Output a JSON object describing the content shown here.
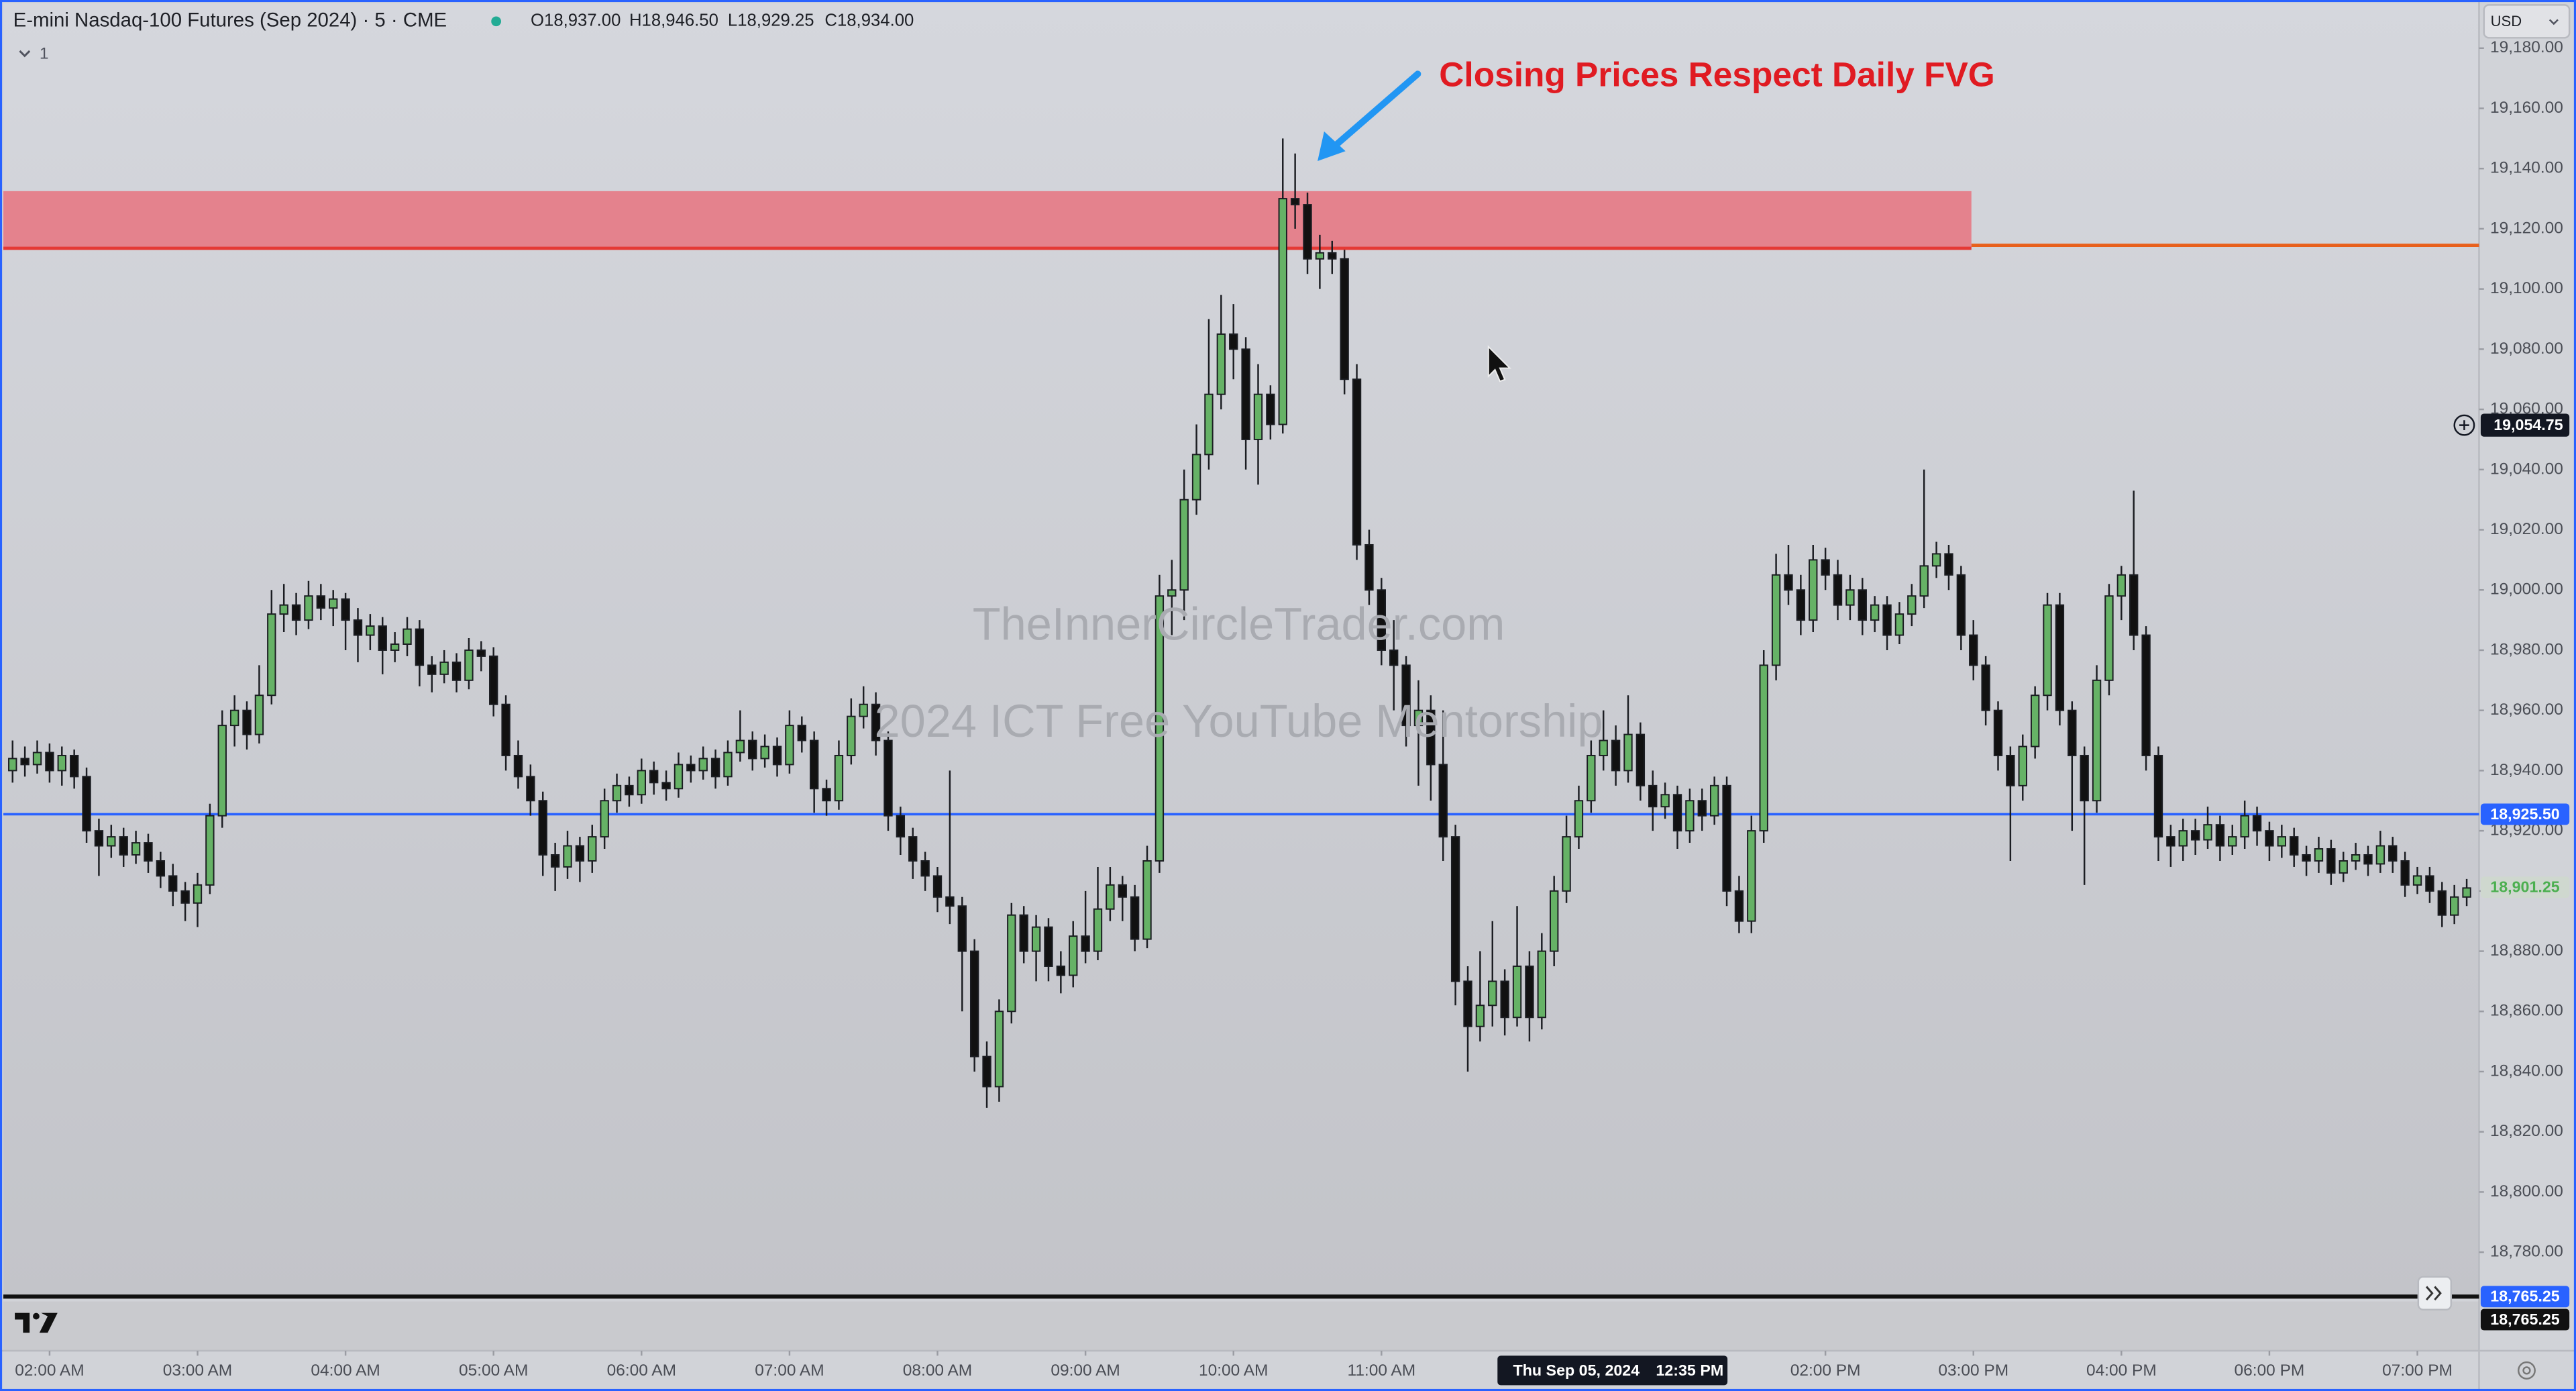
{
  "chart_data": {
    "type": "candlestick",
    "title": "E-mini Nasdaq-100 Futures (Sep 2024) · 5 · CME",
    "ohlc_legend": [
      "O18,937.00",
      "H18,946.50",
      "L18,929.25",
      "C18,934.00"
    ],
    "indicator_count": "1",
    "currency": "USD",
    "annotation": "Closing Prices Respect Daily FVG",
    "watermarks": [
      "TheInnerCircleTrader.com",
      "2024 ICT Free YouTube Mentorship"
    ],
    "up_color": "#66b266",
    "down_color": "#111111",
    "ylim": [
      18759,
      19196
    ],
    "yticks": [
      {
        "value": 19180,
        "label": "19,180.00"
      },
      {
        "value": 19160,
        "label": "19,160.00"
      },
      {
        "value": 19140,
        "label": "19,140.00"
      },
      {
        "value": 19120,
        "label": "19,120.00"
      },
      {
        "value": 19100,
        "label": "19,100.00"
      },
      {
        "value": 19080,
        "label": "19,080.00"
      },
      {
        "value": 19060,
        "label": "19,060.00"
      },
      {
        "value": 19040,
        "label": "19,040.00"
      },
      {
        "value": 19020,
        "label": "19,020.00"
      },
      {
        "value": 19000,
        "label": "19,000.00"
      },
      {
        "value": 18980,
        "label": "18,980.00"
      },
      {
        "value": 18960,
        "label": "18,960.00"
      },
      {
        "value": 18940,
        "label": "18,940.00"
      },
      {
        "value": 18920,
        "label": "18,920.00"
      },
      {
        "value": 18900,
        "label": "18,900.00"
      },
      {
        "value": 18880,
        "label": "18,880.00"
      },
      {
        "value": 18860,
        "label": "18,860.00"
      },
      {
        "value": 18840,
        "label": "18,840.00"
      },
      {
        "value": 18820,
        "label": "18,820.00"
      },
      {
        "value": 18800,
        "label": "18,800.00"
      },
      {
        "value": 18780,
        "label": "18,780.00"
      }
    ],
    "xlim": [
      -0.75,
      200
    ],
    "xticks": [
      {
        "value": 3,
        "label": "02:00 AM"
      },
      {
        "value": 15,
        "label": "03:00 AM"
      },
      {
        "value": 27,
        "label": "04:00 AM"
      },
      {
        "value": 39,
        "label": "05:00 AM"
      },
      {
        "value": 51,
        "label": "06:00 AM"
      },
      {
        "value": 63,
        "label": "07:00 AM"
      },
      {
        "value": 75,
        "label": "08:00 AM"
      },
      {
        "value": 87,
        "label": "09:00 AM"
      },
      {
        "value": 99,
        "label": "10:00 AM"
      },
      {
        "value": 111,
        "label": "11:00 AM"
      },
      {
        "value": 147,
        "label": "02:00 PM"
      },
      {
        "value": 159,
        "label": "03:00 PM"
      },
      {
        "value": 171,
        "label": "04:00 PM"
      },
      {
        "value": 183,
        "label": "06:00 PM"
      },
      {
        "value": 195,
        "label": "07:00 PM"
      }
    ],
    "zone": {
      "from": 19113.5,
      "to": 19132.5,
      "color": "#e8737f",
      "edge_color": "#e53935"
    },
    "fvg_line": {
      "value": 19114.5,
      "color": "#e8601c"
    },
    "levels": [
      {
        "value": 18925.5,
        "label": "18,925.50",
        "color": "#2962ff"
      },
      {
        "value": 18765.25,
        "label": "18,765.25",
        "color": "#111111"
      }
    ],
    "level_extra_label": {
      "value": 18765.25,
      "label": "18,765.25",
      "color": "#2962ff"
    },
    "last_price": {
      "value": 18901.25,
      "label": "18,901.25",
      "color": "#4caf50"
    },
    "crosshair": {
      "x": 130,
      "y": 19054.75,
      "price_label": "19,054.75",
      "date": "Thu Sep 05, 2024",
      "time": "12:35 PM"
    },
    "candles": [
      [
        18940,
        18950,
        18936,
        18944
      ],
      [
        18944,
        18948,
        18938,
        18942
      ],
      [
        18942,
        18950,
        18939,
        18946
      ],
      [
        18946,
        18949,
        18936,
        18940
      ],
      [
        18940,
        18948,
        18935,
        18945
      ],
      [
        18945,
        18947,
        18934,
        18938
      ],
      [
        18938,
        18941,
        18916,
        18920
      ],
      [
        18920,
        18924,
        18905,
        18915
      ],
      [
        18915,
        18922,
        18911,
        18918
      ],
      [
        18918,
        18921,
        18908,
        18912
      ],
      [
        18912,
        18920,
        18909,
        18916
      ],
      [
        18916,
        18919,
        18906,
        18910
      ],
      [
        18910,
        18913,
        18901,
        18905
      ],
      [
        18905,
        18909,
        18895,
        18900
      ],
      [
        18900,
        18903,
        18890,
        18896
      ],
      [
        18896,
        18906,
        18888,
        18902
      ],
      [
        18902,
        18929,
        18899,
        18925
      ],
      [
        18925,
        18960,
        18921,
        18955
      ],
      [
        18955,
        18965,
        18948,
        18960
      ],
      [
        18960,
        18963,
        18947,
        18952
      ],
      [
        18952,
        18975,
        18949,
        18965
      ],
      [
        18965,
        19000,
        18962,
        18992
      ],
      [
        18992,
        19002,
        18986,
        18995
      ],
      [
        18995,
        18999,
        18985,
        18990
      ],
      [
        18990,
        19003,
        18987,
        18998
      ],
      [
        18998,
        19002,
        18990,
        18994
      ],
      [
        18994,
        19000,
        18988,
        18997
      ],
      [
        18997,
        18999,
        18980,
        18990
      ],
      [
        18990,
        18994,
        18976,
        18985
      ],
      [
        18985,
        18992,
        18980,
        18988
      ],
      [
        18988,
        18991,
        18972,
        18980
      ],
      [
        18980,
        18986,
        18976,
        18982
      ],
      [
        18982,
        18991,
        18978,
        18987
      ],
      [
        18987,
        18990,
        18968,
        18975
      ],
      [
        18975,
        18978,
        18966,
        18972
      ],
      [
        18972,
        18980,
        18969,
        18976
      ],
      [
        18976,
        18979,
        18966,
        18970
      ],
      [
        18970,
        18984,
        18967,
        18980
      ],
      [
        18980,
        18983,
        18973,
        18978
      ],
      [
        18978,
        18981,
        18958,
        18962
      ],
      [
        18962,
        18965,
        18940,
        18945
      ],
      [
        18945,
        18950,
        18934,
        18938
      ],
      [
        18938,
        18942,
        18925,
        18930
      ],
      [
        18930,
        18933,
        18905,
        18912
      ],
      [
        18912,
        18916,
        18900,
        18908
      ],
      [
        18908,
        18920,
        18904,
        18915
      ],
      [
        18915,
        18918,
        18903,
        18910
      ],
      [
        18910,
        18922,
        18906,
        18918
      ],
      [
        18918,
        18934,
        18914,
        18930
      ],
      [
        18930,
        18939,
        18926,
        18935
      ],
      [
        18935,
        18938,
        18928,
        18932
      ],
      [
        18932,
        18944,
        18929,
        18940
      ],
      [
        18940,
        18943,
        18932,
        18936
      ],
      [
        18936,
        18940,
        18930,
        18934
      ],
      [
        18934,
        18946,
        18931,
        18942
      ],
      [
        18942,
        18945,
        18936,
        18940
      ],
      [
        18940,
        18948,
        18937,
        18944
      ],
      [
        18944,
        18947,
        18934,
        18938
      ],
      [
        18938,
        18950,
        18935,
        18946
      ],
      [
        18946,
        18960,
        18943,
        18950
      ],
      [
        18950,
        18953,
        18940,
        18944
      ],
      [
        18944,
        18952,
        18941,
        18948
      ],
      [
        18948,
        18951,
        18938,
        18942
      ],
      [
        18942,
        18960,
        18939,
        18955
      ],
      [
        18955,
        18958,
        18946,
        18950
      ],
      [
        18950,
        18953,
        18926,
        18934
      ],
      [
        18934,
        18937,
        18925,
        18930
      ],
      [
        18930,
        18950,
        18927,
        18945
      ],
      [
        18945,
        18964,
        18942,
        18958
      ],
      [
        18958,
        18968,
        18954,
        18962
      ],
      [
        18962,
        18966,
        18945,
        18950
      ],
      [
        18950,
        18953,
        18920,
        18925
      ],
      [
        18925,
        18928,
        18912,
        18918
      ],
      [
        18918,
        18921,
        18904,
        18910
      ],
      [
        18910,
        18913,
        18900,
        18905
      ],
      [
        18905,
        18908,
        18893,
        18898
      ],
      [
        18898,
        18940,
        18889,
        18895
      ],
      [
        18895,
        18898,
        18860,
        18880
      ],
      [
        18880,
        18884,
        18840,
        18845
      ],
      [
        18845,
        18850,
        18828,
        18835
      ],
      [
        18835,
        18864,
        18830,
        18860
      ],
      [
        18860,
        18896,
        18856,
        18892
      ],
      [
        18892,
        18895,
        18876,
        18880
      ],
      [
        18880,
        18892,
        18870,
        18888
      ],
      [
        18888,
        18891,
        18870,
        18875
      ],
      [
        18875,
        18880,
        18866,
        18872
      ],
      [
        18872,
        18890,
        18868,
        18885
      ],
      [
        18885,
        18900,
        18876,
        18880
      ],
      [
        18880,
        18908,
        18877,
        18894
      ],
      [
        18894,
        18908,
        18890,
        18902
      ],
      [
        18902,
        18905,
        18890,
        18898
      ],
      [
        18898,
        18902,
        18880,
        18884
      ],
      [
        18884,
        18915,
        18881,
        18910
      ],
      [
        18910,
        19005,
        18906,
        18998
      ],
      [
        18998,
        19010,
        18985,
        19000
      ],
      [
        19000,
        19040,
        18990,
        19030
      ],
      [
        19030,
        19055,
        19025,
        19045
      ],
      [
        19045,
        19090,
        19040,
        19065
      ],
      [
        19065,
        19098,
        19060,
        19085
      ],
      [
        19085,
        19095,
        19070,
        19080
      ],
      [
        19080,
        19084,
        19040,
        19050
      ],
      [
        19050,
        19075,
        19035,
        19065
      ],
      [
        19065,
        19068,
        19050,
        19055
      ],
      [
        19055,
        19150,
        19052,
        19130
      ],
      [
        19130,
        19145,
        19120,
        19128
      ],
      [
        19128,
        19132,
        19105,
        19110
      ],
      [
        19110,
        19118,
        19100,
        19112
      ],
      [
        19112,
        19116,
        19105,
        19110
      ],
      [
        19110,
        19113,
        19065,
        19070
      ],
      [
        19070,
        19075,
        19010,
        19015
      ],
      [
        19015,
        19020,
        18995,
        19000
      ],
      [
        19000,
        19004,
        18975,
        18980
      ],
      [
        18980,
        18990,
        18960,
        18975
      ],
      [
        18975,
        18978,
        18948,
        18955
      ],
      [
        18955,
        18970,
        18935,
        18960
      ],
      [
        18960,
        18965,
        18930,
        18942
      ],
      [
        18942,
        18960,
        18910,
        18918
      ],
      [
        18918,
        18922,
        18862,
        18870
      ],
      [
        18870,
        18875,
        18840,
        18855
      ],
      [
        18855,
        18880,
        18850,
        18862
      ],
      [
        18862,
        18890,
        18855,
        18870
      ],
      [
        18870,
        18874,
        18852,
        18858
      ],
      [
        18858,
        18895,
        18855,
        18875
      ],
      [
        18875,
        18880,
        18850,
        18858
      ],
      [
        18858,
        18886,
        18854,
        18880
      ],
      [
        18880,
        18905,
        18875,
        18900
      ],
      [
        18900,
        18925,
        18896,
        18918
      ],
      [
        18918,
        18935,
        18914,
        18930
      ],
      [
        18930,
        18950,
        18926,
        18945
      ],
      [
        18945,
        18960,
        18940,
        18950
      ],
      [
        18950,
        18955,
        18935,
        18940
      ],
      [
        18940,
        18965,
        18936,
        18952
      ],
      [
        18952,
        18956,
        18930,
        18935
      ],
      [
        18935,
        18940,
        18920,
        18928
      ],
      [
        18928,
        18936,
        18924,
        18932
      ],
      [
        18932,
        18935,
        18914,
        18920
      ],
      [
        18920,
        18934,
        18916,
        18930
      ],
      [
        18930,
        18934,
        18920,
        18925
      ],
      [
        18925,
        18938,
        18922,
        18935
      ],
      [
        18935,
        18938,
        18895,
        18900
      ],
      [
        18900,
        18905,
        18886,
        18890
      ],
      [
        18890,
        18925,
        18886,
        18920
      ],
      [
        18920,
        18980,
        18916,
        18975
      ],
      [
        18975,
        19012,
        18970,
        19005
      ],
      [
        19005,
        19015,
        18995,
        19000
      ],
      [
        19000,
        19005,
        18985,
        18990
      ],
      [
        18990,
        19015,
        18986,
        19010
      ],
      [
        19010,
        19014,
        19000,
        19005
      ],
      [
        19005,
        19010,
        18990,
        18995
      ],
      [
        18995,
        19005,
        18990,
        19000
      ],
      [
        19000,
        19004,
        18985,
        18990
      ],
      [
        18990,
        18998,
        18986,
        18995
      ],
      [
        18995,
        18998,
        18980,
        18985
      ],
      [
        18985,
        18996,
        18982,
        18992
      ],
      [
        18992,
        19002,
        18988,
        18998
      ],
      [
        18998,
        19040,
        18994,
        19008
      ],
      [
        19008,
        19016,
        19004,
        19012
      ],
      [
        19012,
        19015,
        19000,
        19005
      ],
      [
        19005,
        19008,
        18980,
        18985
      ],
      [
        18985,
        18990,
        18970,
        18975
      ],
      [
        18975,
        18978,
        18955,
        18960
      ],
      [
        18960,
        18963,
        18940,
        18945
      ],
      [
        18945,
        18948,
        18910,
        18935
      ],
      [
        18935,
        18952,
        18930,
        18948
      ],
      [
        18948,
        18968,
        18944,
        18965
      ],
      [
        18965,
        18999,
        18960,
        18995
      ],
      [
        18995,
        18999,
        18955,
        18960
      ],
      [
        18960,
        18963,
        18920,
        18945
      ],
      [
        18945,
        18948,
        18902,
        18930
      ],
      [
        18930,
        18975,
        18926,
        18970
      ],
      [
        18970,
        19002,
        18965,
        18998
      ],
      [
        18998,
        19008,
        18990,
        19005
      ],
      [
        19005,
        19033,
        18980,
        18985
      ],
      [
        18985,
        18988,
        18940,
        18945
      ],
      [
        18945,
        18948,
        18910,
        18918
      ],
      [
        18918,
        18922,
        18908,
        18915
      ],
      [
        18915,
        18924,
        18910,
        18920
      ],
      [
        18920,
        18924,
        18912,
        18917
      ],
      [
        18917,
        18928,
        18914,
        18922
      ],
      [
        18922,
        18925,
        18910,
        18915
      ],
      [
        18915,
        18922,
        18912,
        18918
      ],
      [
        18918,
        18930,
        18914,
        18925
      ],
      [
        18925,
        18928,
        18915,
        18920
      ],
      [
        18920,
        18923,
        18910,
        18915
      ],
      [
        18915,
        18922,
        18911,
        18918
      ],
      [
        18918,
        18921,
        18908,
        18912
      ],
      [
        18912,
        18915,
        18905,
        18910
      ],
      [
        18910,
        18918,
        18906,
        18914
      ],
      [
        18914,
        18917,
        18902,
        18906
      ],
      [
        18906,
        18913,
        18903,
        18910
      ],
      [
        18910,
        18916,
        18907,
        18912
      ],
      [
        18912,
        18915,
        18905,
        18909
      ],
      [
        18909,
        18920,
        18906,
        18915
      ],
      [
        18915,
        18918,
        18906,
        18910
      ],
      [
        18910,
        18913,
        18898,
        18902
      ],
      [
        18902,
        18908,
        18899,
        18905
      ],
      [
        18905,
        18908,
        18896,
        18900
      ],
      [
        18900,
        18903,
        18888,
        18892
      ],
      [
        18892,
        18902,
        18889,
        18898
      ],
      [
        18898,
        18904,
        18895,
        18901
      ]
    ]
  }
}
